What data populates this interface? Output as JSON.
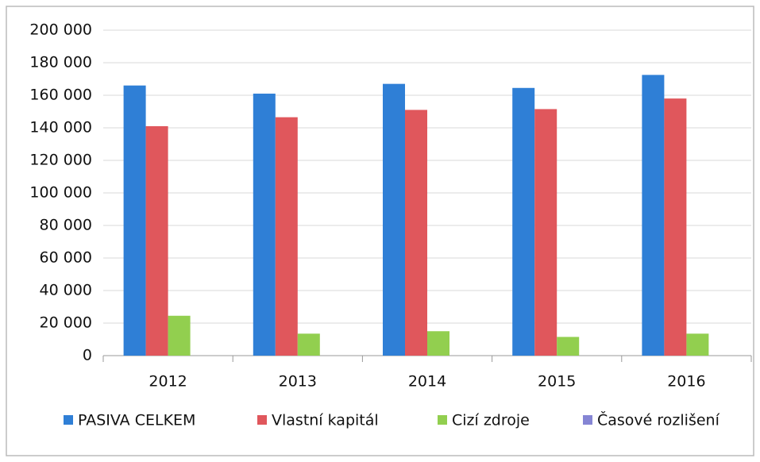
{
  "chart_data": {
    "type": "bar",
    "categories": [
      "2012",
      "2013",
      "2014",
      "2015",
      "2016"
    ],
    "series": [
      {
        "name": "PASIVA CELKEM",
        "color": "#2f7fd6",
        "values": [
          166000,
          161000,
          167000,
          164500,
          172500
        ]
      },
      {
        "name": "Vlastní kapitál",
        "color": "#e0575c",
        "values": [
          141000,
          146500,
          151000,
          151500,
          158000
        ]
      },
      {
        "name": "Cizí zdroje",
        "color": "#92cf4f",
        "values": [
          24500,
          13500,
          15000,
          11500,
          13500
        ]
      },
      {
        "name": "Časové rozlišení",
        "color": "#8585d4",
        "values": [
          0,
          0,
          0,
          0,
          0
        ]
      }
    ],
    "ylim": [
      0,
      200000
    ],
    "yticks": [
      0,
      {
        "value": 20000,
        "label": "20 000"
      },
      {
        "value": 40000,
        "label": "40 000"
      },
      {
        "value": 60000,
        "label": "60 000"
      },
      {
        "value": 80000,
        "label": "80 000"
      },
      {
        "value": 100000,
        "label": "100 000"
      },
      {
        "value": 120000,
        "label": "120 000"
      },
      {
        "value": 140000,
        "label": "140 000"
      },
      {
        "value": 160000,
        "label": "160 000"
      },
      {
        "value": 180000,
        "label": "180 000"
      },
      {
        "value": 200000,
        "label": "200 000"
      }
    ],
    "grid": true,
    "legend": "bottom"
  }
}
